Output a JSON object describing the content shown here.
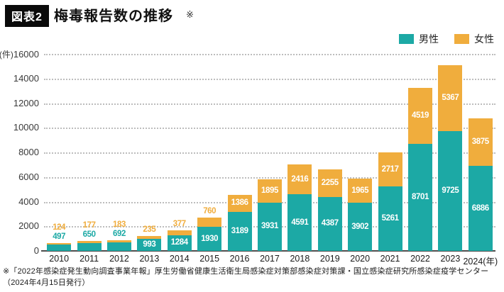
{
  "header": {
    "badge": "図表2",
    "title": "梅毒報告数の推移",
    "note_mark": "※"
  },
  "chart_data": {
    "type": "bar",
    "stacked": true,
    "title": "梅毒報告数の推移",
    "categories": [
      "2010",
      "2011",
      "2012",
      "2013",
      "2014",
      "2015",
      "2016",
      "2017",
      "2018",
      "2019",
      "2020",
      "2021",
      "2022",
      "2023",
      "2024"
    ],
    "series": [
      {
        "name": "男性",
        "color": "#1CA9A5",
        "values": [
          497,
          650,
          692,
          993,
          1284,
          1930,
          3189,
          3931,
          4591,
          4387,
          3902,
          5261,
          8701,
          9725,
          6886
        ]
      },
      {
        "name": "女性",
        "color": "#F0AD3D",
        "values": [
          124,
          177,
          183,
          235,
          377,
          760,
          1386,
          1895,
          2416,
          2255,
          1965,
          2717,
          4519,
          5367,
          3875
        ]
      }
    ],
    "unit_label": "(件)",
    "x_suffix": "(年)",
    "ylim": [
      0,
      16000
    ],
    "ytick_step": 2000,
    "grid": "horizontal-dotted",
    "legend_position": "top-right",
    "inside_label_color": "#ffffff"
  },
  "footnote": "※「2022年感染症発生動向調査事業年報」厚生労働省健康生活衛生局感染症対策部感染症対策課・国立感染症研究所感染症疫学センター（2024年4月15日発行）"
}
